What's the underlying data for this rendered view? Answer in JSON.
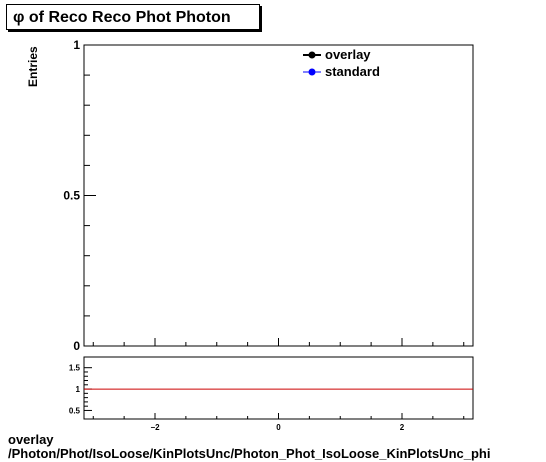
{
  "title": "φ of Reco Reco Phot Photon",
  "footer": {
    "line1": "overlay",
    "line2": "/Photon/Phot/IsoLoose/KinPlotsUnc/Photon_Phot_IsoLoose_KinPlotsUnc_phi"
  },
  "chart_data": [
    {
      "type": "line",
      "ylabel": "Entries",
      "xlim": [
        -3.15,
        3.15
      ],
      "ylim": [
        0,
        1
      ],
      "y_ticks": [
        {
          "value": 0,
          "label": "0"
        },
        {
          "value": 0.5,
          "label": "0.5"
        },
        {
          "value": 1,
          "label": "1"
        }
      ],
      "legend_position": "top-right",
      "series": [
        {
          "name": "overlay",
          "color": "#000000",
          "x": [],
          "y": []
        },
        {
          "name": "standard",
          "color": "#0000ff",
          "x": [],
          "y": []
        }
      ]
    },
    {
      "type": "line",
      "xlim": [
        -3.15,
        3.15
      ],
      "ylim": [
        0.3,
        1.75
      ],
      "x_ticks": [
        {
          "value": -2,
          "label": "−2"
        },
        {
          "value": 0,
          "label": "0"
        },
        {
          "value": 2,
          "label": "2"
        }
      ],
      "y_ticks": [
        {
          "value": 0.5,
          "label": "0.5"
        },
        {
          "value": 1,
          "label": "1"
        },
        {
          "value": 1.5,
          "label": "1.5"
        }
      ],
      "reference_line": {
        "y": 1,
        "color": "#cc0000"
      }
    }
  ]
}
